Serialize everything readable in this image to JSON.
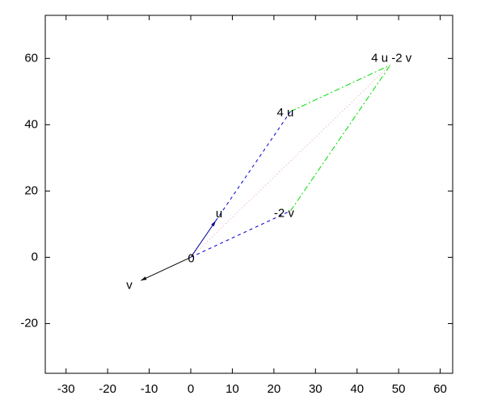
{
  "chart_data": {
    "type": "vector",
    "xlim": [
      -35,
      63
    ],
    "ylim": [
      -35,
      73
    ],
    "xticks": [
      -30,
      -20,
      -10,
      0,
      10,
      20,
      30,
      40,
      50,
      60
    ],
    "yticks": [
      -20,
      0,
      20,
      40,
      60
    ],
    "grid": false,
    "series": [
      {
        "x": [
          0,
          6
        ],
        "values": [
          0,
          11
        ],
        "color": "#00008b",
        "style": "solid",
        "arrow": true
      },
      {
        "x": [
          0,
          -12
        ],
        "values": [
          0,
          -7
        ],
        "color": "#000000",
        "style": "solid",
        "arrow": true
      },
      {
        "x": [
          6,
          24
        ],
        "values": [
          11,
          44
        ],
        "color": "#0000cc",
        "style": "dashed",
        "arrow": false
      },
      {
        "x": [
          0,
          24
        ],
        "values": [
          0,
          14
        ],
        "color": "#0000cc",
        "style": "dashed",
        "arrow": false
      },
      {
        "x": [
          24,
          48
        ],
        "values": [
          44,
          58
        ],
        "color": "#00dd00",
        "style": "dashdot",
        "arrow": false
      },
      {
        "x": [
          24,
          48
        ],
        "values": [
          14,
          58
        ],
        "color": "#00dd00",
        "style": "dashdot",
        "arrow": false
      },
      {
        "x": [
          0,
          48
        ],
        "values": [
          0,
          58
        ],
        "color": "#e8a0a0",
        "style": "dotted",
        "arrow": false
      }
    ],
    "annotations": [
      {
        "text": "0",
        "x": -0.7,
        "y": -0.5
      },
      {
        "text": "u",
        "x": 6,
        "y": 13
      },
      {
        "text": "v",
        "x": -15.5,
        "y": -8.5
      },
      {
        "text": "4 u",
        "x": 20.7,
        "y": 43.5
      },
      {
        "text": "-2 v",
        "x": 20,
        "y": 13.2
      },
      {
        "text": "4 u -2 v",
        "x": 43.4,
        "y": 60
      }
    ]
  }
}
